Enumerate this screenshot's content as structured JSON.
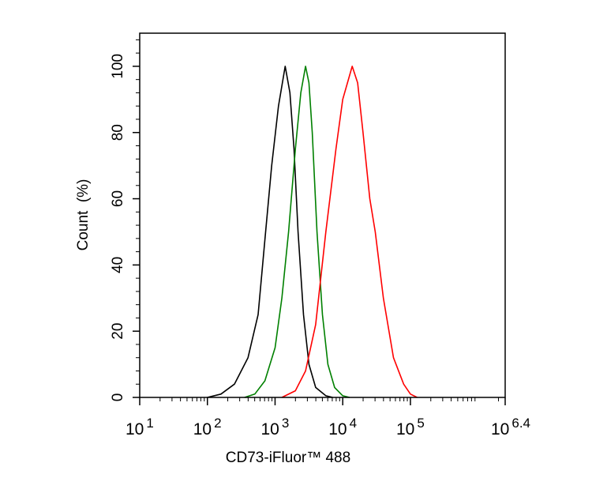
{
  "chart_data": {
    "type": "line",
    "title": "",
    "xlabel": "CD73-iFluor™ 488",
    "ylabel": "Count  (%)",
    "xscale": "log10",
    "xlim_log10": [
      1,
      6.4
    ],
    "ylim": [
      0,
      110
    ],
    "x_ticks": [
      {
        "base": "10",
        "exp": "1",
        "log": 1
      },
      {
        "base": "10",
        "exp": "2",
        "log": 2
      },
      {
        "base": "10",
        "exp": "3",
        "log": 3
      },
      {
        "base": "10",
        "exp": "4",
        "log": 4
      },
      {
        "base": "10",
        "exp": "5",
        "log": 5
      },
      {
        "base": "10",
        "exp": "6.4",
        "log": 6.4
      }
    ],
    "y_ticks": [
      "0",
      "20",
      "40",
      "60",
      "80",
      "100"
    ],
    "grid": false,
    "legend": "none",
    "series": [
      {
        "name": "black",
        "color": "#000000",
        "log10x": [
          2.0,
          2.2,
          2.4,
          2.6,
          2.75,
          2.86,
          2.95,
          3.05,
          3.15,
          3.22,
          3.28,
          3.34,
          3.42,
          3.5,
          3.6,
          3.75,
          3.85
        ],
        "y": [
          0,
          1,
          4,
          12,
          25,
          50,
          70,
          88,
          100,
          92,
          75,
          50,
          25,
          10,
          3,
          0.5,
          0
        ]
      },
      {
        "name": "green",
        "color": "#008000",
        "log10x": [
          2.55,
          2.7,
          2.85,
          3.0,
          3.1,
          3.2,
          3.3,
          3.38,
          3.45,
          3.5,
          3.55,
          3.62,
          3.7,
          3.78,
          3.88,
          4.0,
          4.1
        ],
        "y": [
          0,
          1,
          5,
          15,
          30,
          50,
          75,
          92,
          100,
          95,
          80,
          50,
          25,
          10,
          3,
          0.5,
          0
        ]
      },
      {
        "name": "red",
        "color": "#ff0000",
        "log10x": [
          3.1,
          3.3,
          3.45,
          3.6,
          3.75,
          3.9,
          4.0,
          4.14,
          4.22,
          4.3,
          4.4,
          4.48,
          4.6,
          4.75,
          4.9,
          5.0,
          5.1
        ],
        "y": [
          0,
          2,
          8,
          22,
          50,
          75,
          90,
          100,
          95,
          80,
          60,
          50,
          30,
          12,
          4,
          1,
          0
        ]
      }
    ]
  }
}
